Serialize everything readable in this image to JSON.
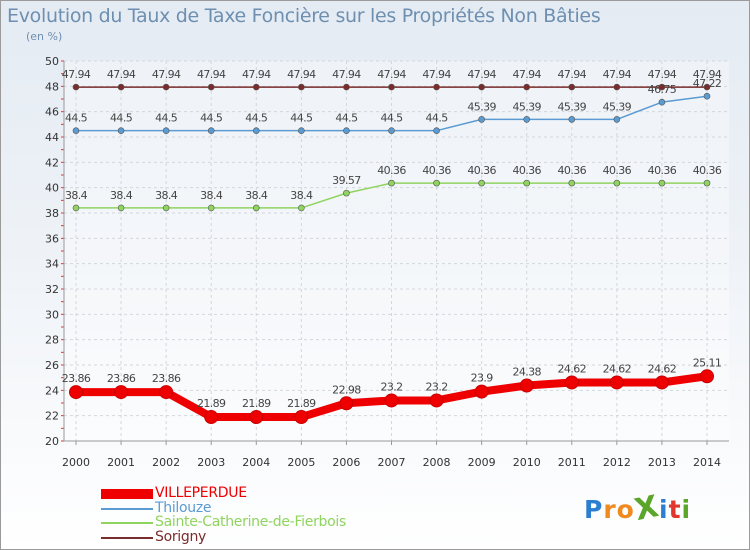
{
  "title": "Evolution du Taux de Taxe Foncière sur les Propriétés Non Bâties",
  "subtitle": "(en %)",
  "brand": {
    "text": "ProXiti",
    "letters": [
      "P",
      "r",
      "o",
      "X",
      "i",
      "t",
      "i"
    ],
    "colors": [
      "#2c7fd0",
      "#ef8a1e",
      "#ef8a1e",
      "#5aa52a",
      "#2c7fd0",
      "#e1372c",
      "#5aa52a"
    ]
  },
  "chart_data": {
    "type": "line",
    "title": "Evolution du Taux de Taxe Foncière sur les Propriétés Non Bâties",
    "ylabel": "(en %)",
    "xlabel": "",
    "categories": [
      "2000",
      "2001",
      "2002",
      "2003",
      "2004",
      "2005",
      "2006",
      "2007",
      "2008",
      "2009",
      "2010",
      "2011",
      "2012",
      "2013",
      "2014"
    ],
    "ylim": [
      20,
      50
    ],
    "yticks": [
      "20",
      "22",
      "24",
      "26",
      "28",
      "30",
      "32",
      "34",
      "36",
      "38",
      "40",
      "42",
      "44",
      "46",
      "48",
      "50"
    ],
    "grid": true,
    "legend_position": "bottom-left",
    "series": [
      {
        "name": "VILLEPERDUE",
        "color": "#ee0000",
        "values": [
          23.86,
          23.86,
          23.86,
          21.89,
          21.89,
          21.89,
          22.98,
          23.2,
          23.2,
          23.9,
          24.38,
          24.62,
          24.62,
          24.62,
          25.11
        ],
        "labels": [
          "23.86",
          "23.86",
          "23.86",
          "21.89",
          "21.89",
          "21.89",
          "22.98",
          "23.2",
          "23.2",
          "23.9",
          "24.38",
          "24.62",
          "24.62",
          "24.62",
          "25.11"
        ]
      },
      {
        "name": "Thilouze",
        "color": "#5b9bd2",
        "values": [
          44.5,
          44.5,
          44.5,
          44.5,
          44.5,
          44.5,
          44.5,
          44.5,
          44.5,
          45.39,
          45.39,
          45.39,
          45.39,
          46.75,
          47.22
        ],
        "labels": [
          "44.5",
          "44.5",
          "44.5",
          "44.5",
          "44.5",
          "44.5",
          "44.5",
          "44.5",
          "44.5",
          "45.39",
          "45.39",
          "45.39",
          "45.39",
          "46.75",
          "47.22"
        ]
      },
      {
        "name": "Sainte-Catherine-de-Fierbois",
        "color": "#8fd45f",
        "values": [
          38.4,
          38.4,
          38.4,
          38.4,
          38.4,
          38.4,
          39.57,
          40.36,
          40.36,
          40.36,
          40.36,
          40.36,
          40.36,
          40.36,
          40.36
        ],
        "labels": [
          "38.4",
          "38.4",
          "38.4",
          "38.4",
          "38.4",
          "38.4",
          "39.57",
          "40.36",
          "40.36",
          "40.36",
          "40.36",
          "40.36",
          "40.36",
          "40.36",
          "40.36"
        ]
      },
      {
        "name": "Sorigny",
        "color": "#7a2b2b",
        "values": [
          47.94,
          47.94,
          47.94,
          47.94,
          47.94,
          47.94,
          47.94,
          47.94,
          47.94,
          47.94,
          47.94,
          47.94,
          47.94,
          47.94,
          47.94
        ],
        "labels": [
          "47.94",
          "47.94",
          "47.94",
          "47.94",
          "47.94",
          "47.94",
          "47.94",
          "47.94",
          "47.94",
          "47.94",
          "47.94",
          "47.94",
          "47.94",
          "47.94",
          "47.94"
        ]
      }
    ]
  }
}
